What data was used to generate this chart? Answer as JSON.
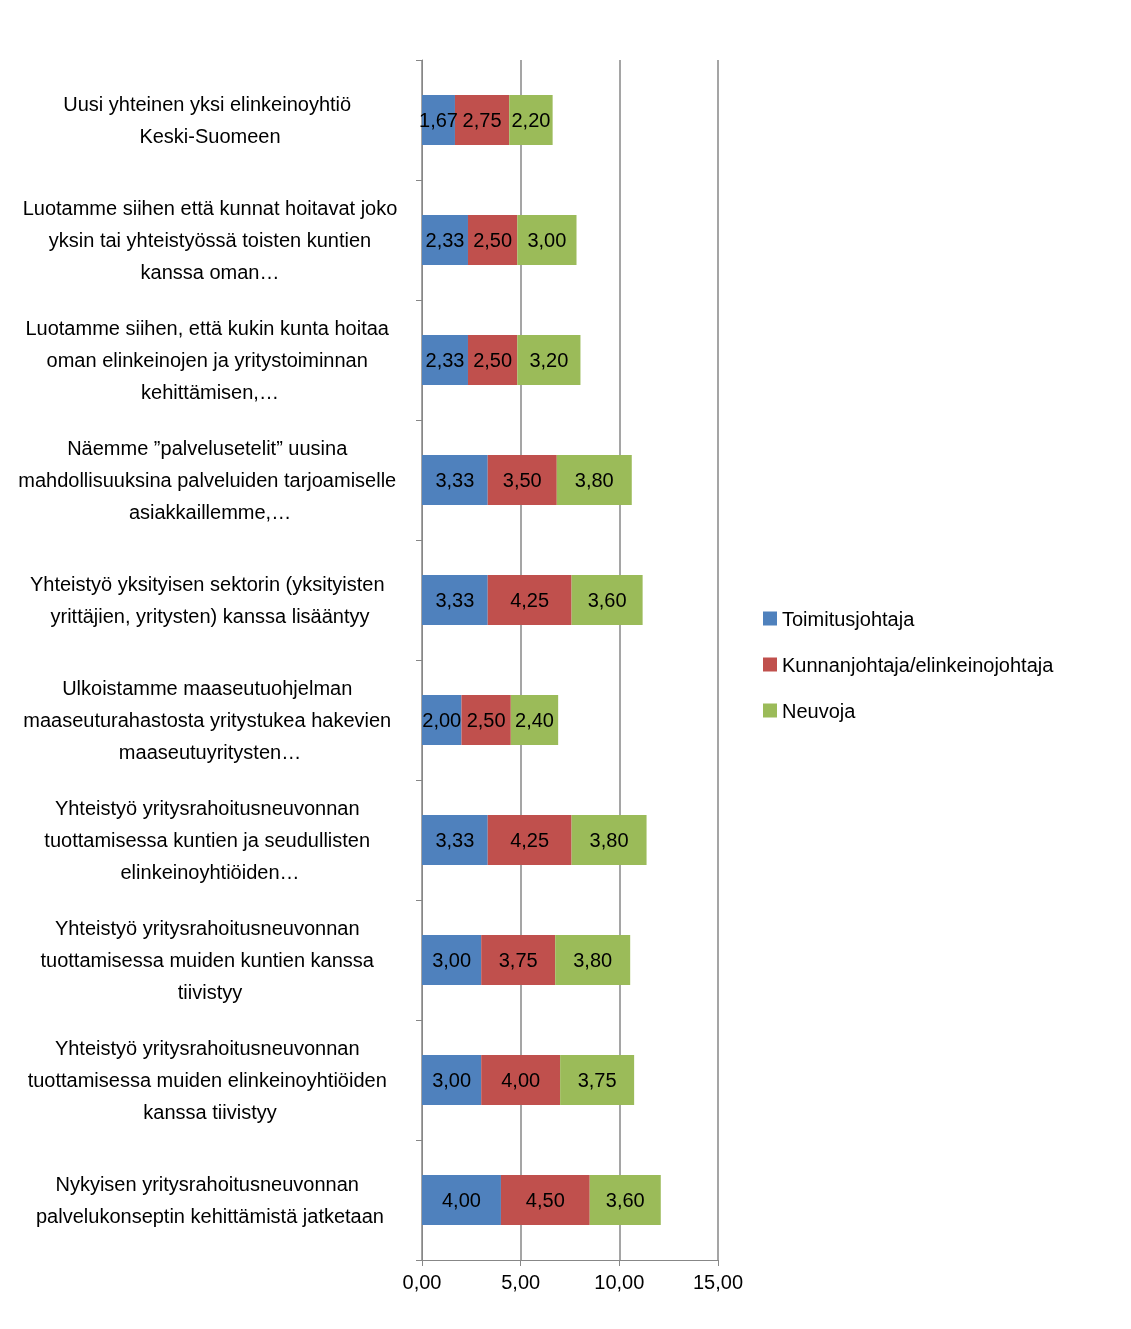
{
  "chart_data": {
    "type": "bar",
    "orientation": "horizontal",
    "stacked": true,
    "categories": [
      "Uusi yhteinen yksi elinkeinoyhtiö Keski-Suomeen",
      "Luotamme siihen että kunnat hoitavat joko yksin tai yhteistyössä toisten kuntien kanssa oman…",
      "Luotamme siihen, että kukin kunta hoitaa oman elinkeinojen ja yritystoiminnan kehittämisen,…",
      "Näemme ”palvelusetelit” uusina mahdollisuuksina palveluiden tarjoamiselle asiakkaillemme,…",
      "Yhteistyö yksityisen sektorin (yksityisten yrittäjien, yritysten) kanssa lisääntyy",
      "Ulkoistamme maaseutuohjelman maaseuturahastosta yritystukea hakevien maaseutuyritysten…",
      "Yhteistyö yritysrahoitusneuvonnan tuottamisessa kuntien ja seudullisten elinkeinoyhtiöiden…",
      "Yhteistyö yritysrahoitusneuvonnan tuottamisessa muiden kuntien kanssa tiivistyy",
      "Yhteistyö yritysrahoitusneuvonnan tuottamisessa muiden elinkeinoyhtiöiden kanssa tiivistyy",
      "Nykyisen yritysrahoitusneuvonnan palvelukonseptin kehittämistä jatketaan"
    ],
    "series": [
      {
        "name": "Toimitusjohtaja",
        "color": "#4f81bd",
        "values": [
          1.67,
          2.33,
          2.33,
          3.33,
          3.33,
          2.0,
          3.33,
          3.0,
          3.0,
          4.0
        ],
        "value_labels": [
          "1,67",
          "2,33",
          "2,33",
          "3,33",
          "3,33",
          "2,00",
          "3,33",
          "3,00",
          "3,00",
          "4,00"
        ]
      },
      {
        "name": "Kunnanjohtaja/elinkeinojohtaja",
        "color": "#c0504d",
        "values": [
          2.75,
          2.5,
          2.5,
          3.5,
          4.25,
          2.5,
          4.25,
          3.75,
          4.0,
          4.5
        ],
        "value_labels": [
          "2,75",
          "2,50",
          "2,50",
          "3,50",
          "4,25",
          "2,50",
          "4,25",
          "3,75",
          "4,00",
          "4,50"
        ]
      },
      {
        "name": "Neuvoja",
        "color": "#9bbb59",
        "values": [
          2.2,
          3.0,
          3.2,
          3.8,
          3.6,
          2.4,
          3.8,
          3.8,
          3.75,
          3.6
        ],
        "value_labels": [
          "2,20",
          "3,00",
          "3,20",
          "3,80",
          "3,60",
          "2,40",
          "3,80",
          "3,80",
          "3,75",
          "3,60"
        ]
      }
    ],
    "xlim": [
      0,
      15
    ],
    "xticks": [
      {
        "value": 0,
        "label": "0,00"
      },
      {
        "value": 5,
        "label": "5,00"
      },
      {
        "value": 10,
        "label": "10,00"
      },
      {
        "value": 15,
        "label": "15,00"
      }
    ],
    "grid": "x",
    "legend": "right"
  }
}
